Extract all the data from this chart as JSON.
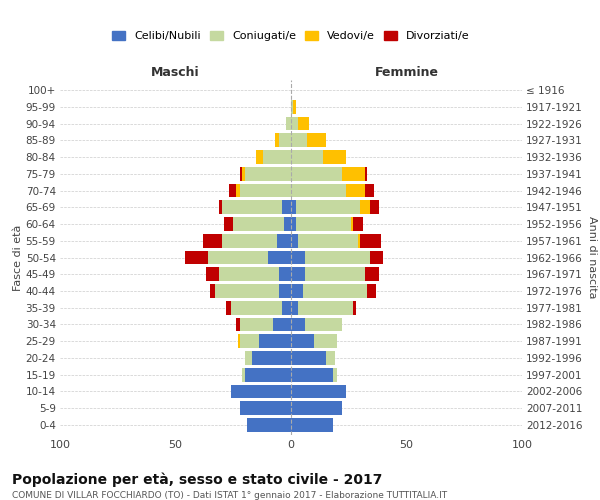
{
  "age_groups": [
    "100+",
    "95-99",
    "90-94",
    "85-89",
    "80-84",
    "75-79",
    "70-74",
    "65-69",
    "60-64",
    "55-59",
    "50-54",
    "45-49",
    "40-44",
    "35-39",
    "30-34",
    "25-29",
    "20-24",
    "15-19",
    "10-14",
    "5-9",
    "0-4"
  ],
  "birth_years": [
    "≤ 1916",
    "1917-1921",
    "1922-1926",
    "1927-1931",
    "1932-1936",
    "1937-1941",
    "1942-1946",
    "1947-1951",
    "1952-1956",
    "1957-1961",
    "1962-1966",
    "1967-1971",
    "1972-1976",
    "1977-1981",
    "1982-1986",
    "1987-1991",
    "1992-1996",
    "1997-2001",
    "2002-2006",
    "2007-2011",
    "2012-2016"
  ],
  "males": {
    "celibi": [
      0,
      0,
      0,
      0,
      0,
      0,
      0,
      4,
      3,
      6,
      10,
      5,
      5,
      4,
      8,
      14,
      17,
      20,
      26,
      22,
      19
    ],
    "coniugati": [
      0,
      0,
      2,
      5,
      12,
      20,
      22,
      26,
      22,
      24,
      26,
      26,
      28,
      22,
      14,
      8,
      3,
      1,
      0,
      0,
      0
    ],
    "vedovi": [
      0,
      0,
      0,
      2,
      3,
      1,
      2,
      0,
      0,
      0,
      0,
      0,
      0,
      0,
      0,
      1,
      0,
      0,
      0,
      0,
      0
    ],
    "divorziati": [
      0,
      0,
      0,
      0,
      0,
      1,
      3,
      1,
      4,
      8,
      10,
      6,
      2,
      2,
      2,
      0,
      0,
      0,
      0,
      0,
      0
    ]
  },
  "females": {
    "nubili": [
      0,
      0,
      0,
      0,
      0,
      0,
      0,
      2,
      2,
      3,
      6,
      6,
      5,
      3,
      6,
      10,
      15,
      18,
      24,
      22,
      18
    ],
    "coniugate": [
      0,
      1,
      3,
      7,
      14,
      22,
      24,
      28,
      24,
      26,
      28,
      26,
      28,
      24,
      16,
      10,
      4,
      2,
      0,
      0,
      0
    ],
    "vedove": [
      0,
      1,
      5,
      8,
      10,
      10,
      8,
      4,
      1,
      1,
      0,
      0,
      0,
      0,
      0,
      0,
      0,
      0,
      0,
      0,
      0
    ],
    "divorziate": [
      0,
      0,
      0,
      0,
      0,
      1,
      4,
      4,
      4,
      9,
      6,
      6,
      4,
      1,
      0,
      0,
      0,
      0,
      0,
      0,
      0
    ]
  },
  "colors": {
    "celibi": "#4472c4",
    "coniugati": "#c5d9a0",
    "vedovi": "#ffc000",
    "divorziati": "#c00000"
  },
  "title": "Popolazione per età, sesso e stato civile - 2017",
  "subtitle": "COMUNE DI VILLAR FOCCHIARDO (TO) - Dati ISTAT 1° gennaio 2017 - Elaborazione TUTTITALIA.IT",
  "xlabel_left": "Maschi",
  "xlabel_right": "Femmine",
  "ylabel_left": "Fasce di età",
  "ylabel_right": "Anni di nascita",
  "xlim": 100,
  "background_color": "#ffffff",
  "grid_color": "#cccccc"
}
